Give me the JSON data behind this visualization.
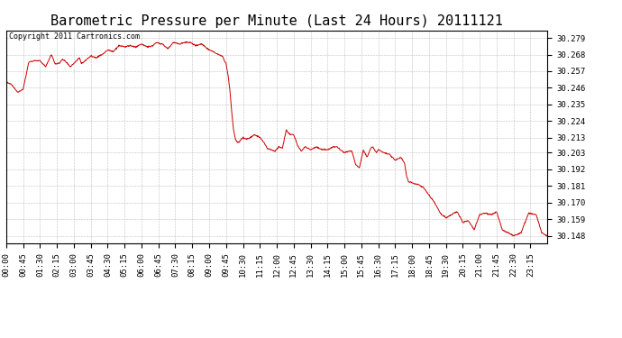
{
  "title": "Barometric Pressure per Minute (Last 24 Hours) 20111121",
  "copyright_text": "Copyright 2011 Cartronics.com",
  "line_color": "#cc0000",
  "bg_color": "#ffffff",
  "grid_color": "#b0b0b0",
  "yticks": [
    30.148,
    30.159,
    30.17,
    30.181,
    30.192,
    30.203,
    30.213,
    30.224,
    30.235,
    30.246,
    30.257,
    30.268,
    30.279
  ],
  "ylim": [
    30.143,
    30.284
  ],
  "xtick_labels": [
    "00:00",
    "00:45",
    "01:30",
    "02:15",
    "03:00",
    "03:45",
    "04:30",
    "05:15",
    "06:00",
    "06:45",
    "07:30",
    "08:15",
    "09:00",
    "09:45",
    "10:30",
    "11:15",
    "12:00",
    "12:45",
    "13:30",
    "14:15",
    "15:00",
    "15:45",
    "16:30",
    "17:15",
    "18:00",
    "18:45",
    "19:30",
    "20:15",
    "21:00",
    "21:45",
    "22:30",
    "23:15"
  ],
  "title_fontsize": 11,
  "tick_fontsize": 6.5,
  "copyright_fontsize": 6,
  "control_points": [
    [
      0,
      30.25
    ],
    [
      15,
      30.248
    ],
    [
      30,
      30.243
    ],
    [
      45,
      30.245
    ],
    [
      60,
      30.263
    ],
    [
      75,
      30.264
    ],
    [
      90,
      30.264
    ],
    [
      105,
      30.26
    ],
    [
      120,
      30.268
    ],
    [
      130,
      30.262
    ],
    [
      140,
      30.262
    ],
    [
      150,
      30.265
    ],
    [
      160,
      30.263
    ],
    [
      170,
      30.26
    ],
    [
      180,
      30.262
    ],
    [
      195,
      30.266
    ],
    [
      200,
      30.262
    ],
    [
      210,
      30.264
    ],
    [
      225,
      30.267
    ],
    [
      240,
      30.266
    ],
    [
      255,
      30.268
    ],
    [
      270,
      30.271
    ],
    [
      285,
      30.27
    ],
    [
      300,
      30.274
    ],
    [
      315,
      30.273
    ],
    [
      330,
      30.274
    ],
    [
      345,
      30.273
    ],
    [
      360,
      30.275
    ],
    [
      375,
      30.273
    ],
    [
      390,
      30.274
    ],
    [
      400,
      30.276
    ],
    [
      415,
      30.275
    ],
    [
      430,
      30.272
    ],
    [
      445,
      30.276
    ],
    [
      460,
      30.275
    ],
    [
      475,
      30.276
    ],
    [
      490,
      30.276
    ],
    [
      505,
      30.274
    ],
    [
      520,
      30.275
    ],
    [
      535,
      30.272
    ],
    [
      550,
      30.27
    ],
    [
      565,
      30.268
    ],
    [
      575,
      30.267
    ],
    [
      585,
      30.262
    ],
    [
      590,
      30.255
    ],
    [
      595,
      30.245
    ],
    [
      600,
      30.23
    ],
    [
      605,
      30.218
    ],
    [
      610,
      30.212
    ],
    [
      615,
      30.21
    ],
    [
      620,
      30.21
    ],
    [
      625,
      30.212
    ],
    [
      630,
      30.213
    ],
    [
      640,
      30.212
    ],
    [
      650,
      30.213
    ],
    [
      660,
      30.215
    ],
    [
      670,
      30.214
    ],
    [
      675,
      30.213
    ],
    [
      685,
      30.21
    ],
    [
      695,
      30.206
    ],
    [
      705,
      30.205
    ],
    [
      715,
      30.204
    ],
    [
      725,
      30.207
    ],
    [
      735,
      30.206
    ],
    [
      745,
      30.218
    ],
    [
      755,
      30.215
    ],
    [
      765,
      30.215
    ],
    [
      775,
      30.208
    ],
    [
      785,
      30.204
    ],
    [
      795,
      30.207
    ],
    [
      810,
      30.205
    ],
    [
      825,
      30.207
    ],
    [
      840,
      30.205
    ],
    [
      855,
      30.205
    ],
    [
      870,
      30.207
    ],
    [
      880,
      30.207
    ],
    [
      890,
      30.205
    ],
    [
      900,
      30.203
    ],
    [
      910,
      30.204
    ],
    [
      920,
      30.204
    ],
    [
      930,
      30.195
    ],
    [
      940,
      30.193
    ],
    [
      950,
      30.205
    ],
    [
      960,
      30.2
    ],
    [
      970,
      30.206
    ],
    [
      975,
      30.207
    ],
    [
      985,
      30.203
    ],
    [
      990,
      30.205
    ],
    [
      1005,
      30.203
    ],
    [
      1020,
      30.202
    ],
    [
      1035,
      30.198
    ],
    [
      1050,
      30.2
    ],
    [
      1060,
      30.196
    ],
    [
      1065,
      30.188
    ],
    [
      1070,
      30.184
    ],
    [
      1080,
      30.183
    ],
    [
      1095,
      30.182
    ],
    [
      1110,
      30.18
    ],
    [
      1125,
      30.175
    ],
    [
      1140,
      30.17
    ],
    [
      1155,
      30.163
    ],
    [
      1170,
      30.16
    ],
    [
      1185,
      30.162
    ],
    [
      1200,
      30.164
    ],
    [
      1215,
      30.157
    ],
    [
      1230,
      30.158
    ],
    [
      1245,
      30.152
    ],
    [
      1260,
      30.162
    ],
    [
      1275,
      30.163
    ],
    [
      1290,
      30.162
    ],
    [
      1305,
      30.164
    ],
    [
      1320,
      30.152
    ],
    [
      1335,
      30.15
    ],
    [
      1350,
      30.148
    ],
    [
      1370,
      30.15
    ],
    [
      1390,
      30.163
    ],
    [
      1410,
      30.162
    ],
    [
      1425,
      30.15
    ],
    [
      1440,
      30.148
    ]
  ]
}
